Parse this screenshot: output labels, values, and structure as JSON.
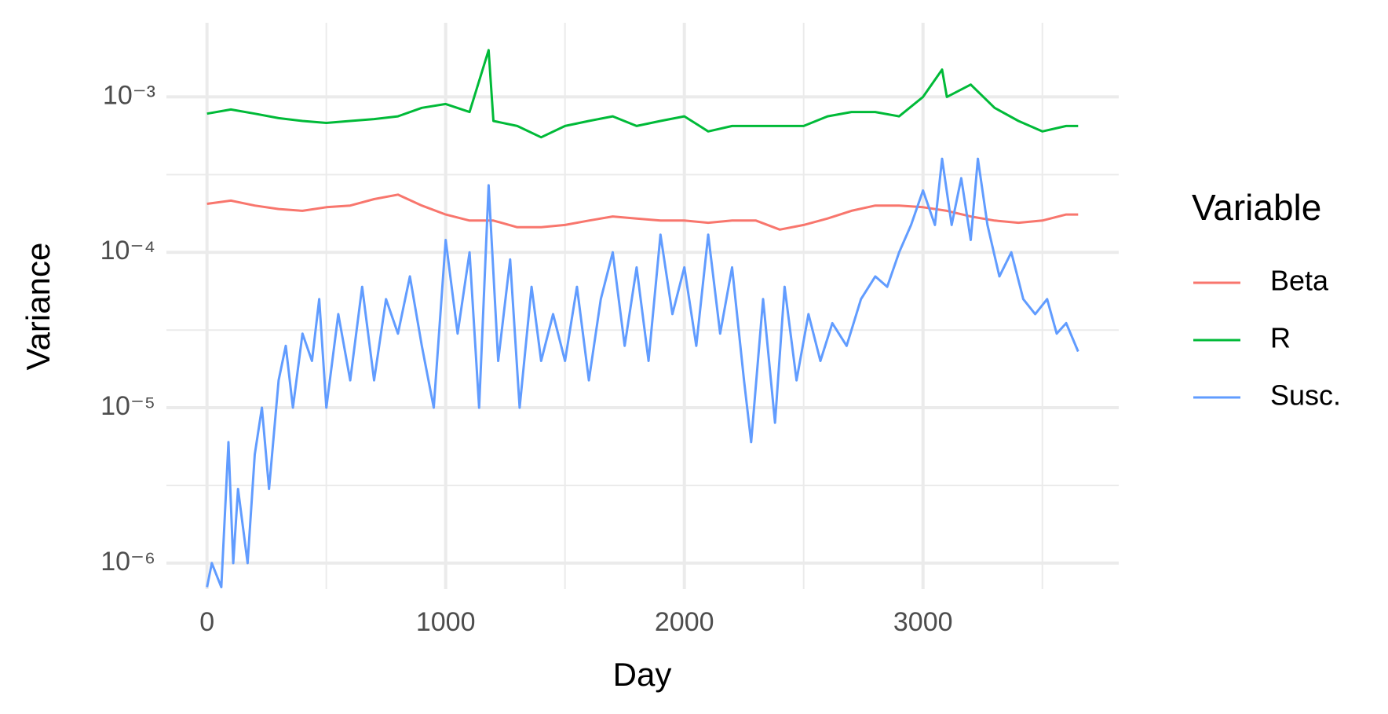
{
  "chart_data": {
    "type": "line",
    "x_label": "Day",
    "y_label": "Variance",
    "legend_title": "Variable",
    "legend_position": "right",
    "log_y": true,
    "grid": true,
    "xlim": [
      -170,
      3820
    ],
    "xticks": [
      0,
      1000,
      2000,
      3000
    ],
    "xminor": [
      500,
      1500,
      2500,
      3500
    ],
    "ylim": [
      6.8e-07,
      0.003
    ],
    "yticks": [
      {
        "value": 1e-06,
        "label": "10⁻⁶"
      },
      {
        "value": 1e-05,
        "label": "10⁻⁵"
      },
      {
        "value": 0.0001,
        "label": "10⁻⁴"
      },
      {
        "value": 0.001,
        "label": "10⁻³"
      }
    ],
    "yminor": [
      3.16e-06,
      3.16e-05,
      0.000316
    ],
    "series": [
      {
        "name": "Beta",
        "color": "#f8766d",
        "x": [
          0,
          100,
          200,
          300,
          400,
          500,
          600,
          700,
          800,
          900,
          1000,
          1100,
          1200,
          1300,
          1400,
          1500,
          1600,
          1700,
          1800,
          1900,
          2000,
          2100,
          2200,
          2300,
          2400,
          2500,
          2600,
          2700,
          2800,
          2900,
          3000,
          3100,
          3200,
          3300,
          3400,
          3500,
          3600,
          3650
        ],
        "values": [
          0.000205,
          0.000215,
          0.0002,
          0.00019,
          0.000185,
          0.000195,
          0.0002,
          0.00022,
          0.000235,
          0.0002,
          0.000175,
          0.00016,
          0.00016,
          0.000145,
          0.000145,
          0.00015,
          0.00016,
          0.00017,
          0.000165,
          0.00016,
          0.00016,
          0.000155,
          0.00016,
          0.00016,
          0.00014,
          0.00015,
          0.000165,
          0.000185,
          0.0002,
          0.0002,
          0.000195,
          0.000185,
          0.00017,
          0.00016,
          0.000155,
          0.00016,
          0.000175,
          0.000175
        ]
      },
      {
        "name": "R",
        "color": "#00ba38",
        "x": [
          0,
          100,
          200,
          300,
          400,
          500,
          600,
          700,
          800,
          900,
          1000,
          1100,
          1180,
          1200,
          1300,
          1400,
          1500,
          1600,
          1700,
          1800,
          1900,
          2000,
          2100,
          2200,
          2300,
          2400,
          2500,
          2600,
          2700,
          2800,
          2900,
          3000,
          3080,
          3100,
          3200,
          3300,
          3400,
          3500,
          3600,
          3650
        ],
        "values": [
          0.00078,
          0.00083,
          0.00078,
          0.00073,
          0.0007,
          0.00068,
          0.0007,
          0.00072,
          0.00075,
          0.00085,
          0.0009,
          0.0008,
          0.002,
          0.0007,
          0.00065,
          0.00055,
          0.00065,
          0.0007,
          0.00075,
          0.00065,
          0.0007,
          0.00075,
          0.0006,
          0.00065,
          0.00065,
          0.00065,
          0.00065,
          0.00075,
          0.0008,
          0.0008,
          0.00075,
          0.001,
          0.0015,
          0.001,
          0.0012,
          0.00085,
          0.0007,
          0.0006,
          0.00065,
          0.00065
        ]
      },
      {
        "name": "Susc.",
        "color": "#619cff",
        "x": [
          0,
          20,
          60,
          90,
          110,
          130,
          170,
          200,
          230,
          260,
          300,
          330,
          360,
          400,
          440,
          470,
          500,
          550,
          600,
          650,
          700,
          750,
          800,
          850,
          900,
          950,
          1000,
          1050,
          1100,
          1140,
          1180,
          1220,
          1270,
          1310,
          1360,
          1400,
          1450,
          1500,
          1550,
          1600,
          1650,
          1700,
          1750,
          1800,
          1850,
          1900,
          1950,
          2000,
          2050,
          2100,
          2150,
          2200,
          2250,
          2280,
          2330,
          2380,
          2420,
          2470,
          2520,
          2570,
          2620,
          2680,
          2740,
          2800,
          2850,
          2900,
          2950,
          3000,
          3050,
          3080,
          3120,
          3160,
          3200,
          3230,
          3270,
          3320,
          3370,
          3420,
          3470,
          3520,
          3560,
          3600,
          3650
        ],
        "values": [
          7e-07,
          1e-06,
          7e-07,
          6e-06,
          1e-06,
          3e-06,
          1e-06,
          5e-06,
          1e-05,
          3e-06,
          1.5e-05,
          2.5e-05,
          1e-05,
          3e-05,
          2e-05,
          5e-05,
          1e-05,
          4e-05,
          1.5e-05,
          6e-05,
          1.5e-05,
          5e-05,
          3e-05,
          7e-05,
          2.5e-05,
          1e-05,
          0.00012,
          3e-05,
          0.0001,
          1e-05,
          0.00027,
          2e-05,
          9e-05,
          1e-05,
          6e-05,
          2e-05,
          4e-05,
          2e-05,
          6e-05,
          1.5e-05,
          5e-05,
          0.0001,
          2.5e-05,
          8e-05,
          2e-05,
          0.00013,
          4e-05,
          8e-05,
          2.5e-05,
          0.00013,
          3e-05,
          8e-05,
          1.5e-05,
          6e-06,
          5e-05,
          8e-06,
          6e-05,
          1.5e-05,
          4e-05,
          2e-05,
          3.5e-05,
          2.5e-05,
          5e-05,
          7e-05,
          6e-05,
          0.0001,
          0.00015,
          0.00025,
          0.00015,
          0.0004,
          0.00015,
          0.0003,
          0.00012,
          0.0004,
          0.00015,
          7e-05,
          0.0001,
          5e-05,
          4e-05,
          5e-05,
          3e-05,
          3.5e-05,
          2.3e-05
        ]
      }
    ]
  }
}
